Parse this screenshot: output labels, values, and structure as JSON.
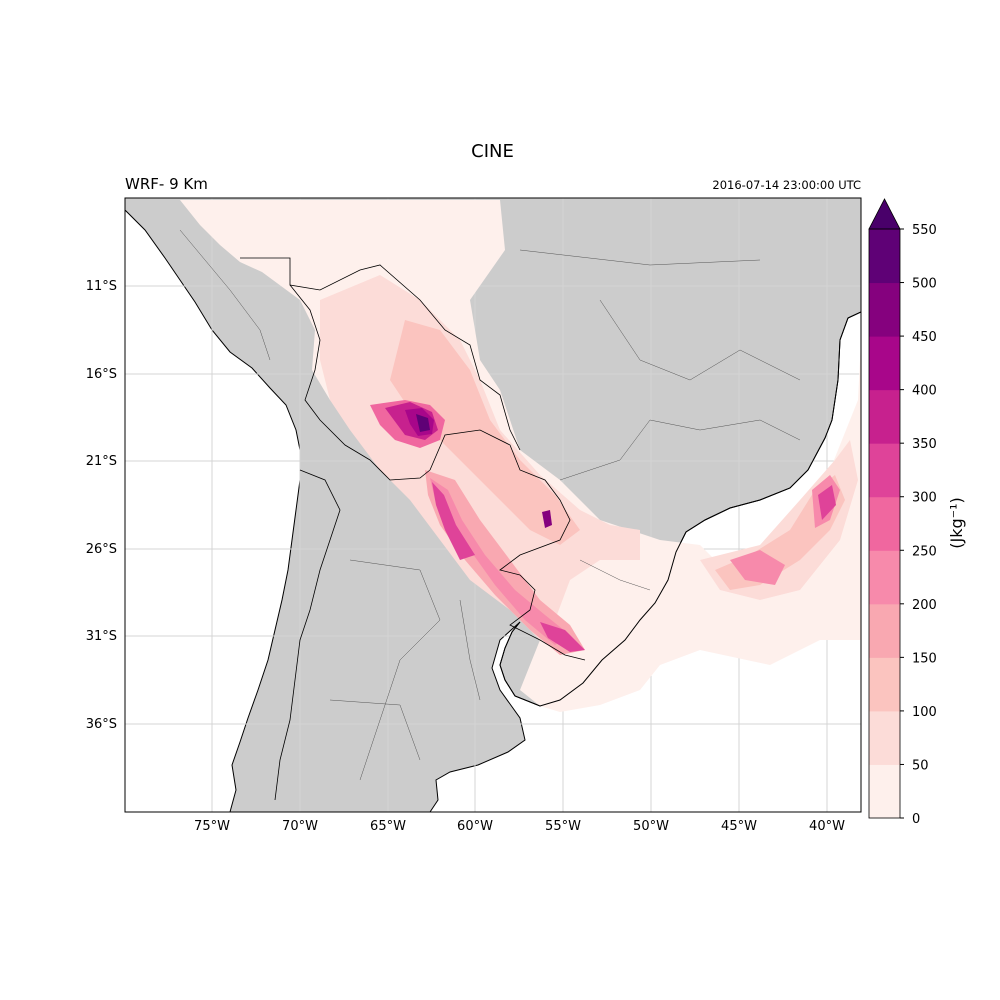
{
  "title": "CINE",
  "left_label": "WRF- 9 Km",
  "right_label": "2016-07-14 23:00:00 UTC",
  "map": {
    "extent_lon": [
      -80,
      -38
    ],
    "extent_lat": [
      -40,
      -6
    ],
    "lon_ticks": [
      "75°W",
      "70°W",
      "65°W",
      "60°W",
      "55°W",
      "50°W",
      "45°W",
      "40°W"
    ],
    "lat_ticks": [
      "11°S",
      "16°S",
      "21°S",
      "26°S",
      "31°S",
      "36°S"
    ],
    "land_color": "#cccccc",
    "ocean_color": "#ffffff",
    "gridlines": true
  },
  "colorbar": {
    "label": "(Jkg⁻¹)",
    "ticks": [
      "0",
      "50",
      "100",
      "150",
      "200",
      "250",
      "300",
      "350",
      "400",
      "450",
      "500",
      "550"
    ],
    "extend": "max",
    "colors": [
      "#fef0ec",
      "#fcdcd8",
      "#fbc4bf",
      "#f9a8b1",
      "#f78aab",
      "#f0679f",
      "#df4399",
      "#c7218e",
      "#a8068a",
      "#85017e",
      "#5f0176"
    ],
    "over_color": "#49006a"
  }
}
